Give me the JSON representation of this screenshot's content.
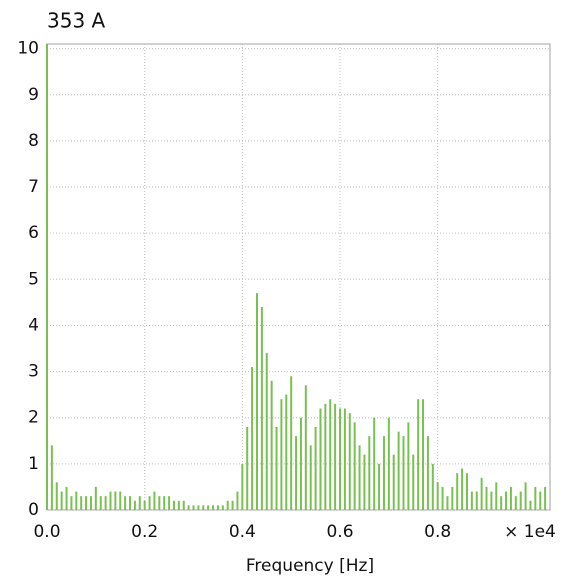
{
  "chart_data": {
    "type": "stem",
    "title": "353 A",
    "x_label": "Frequency [Hz]",
    "x_multiplier": "× 1e4",
    "color": "#78c052",
    "title_color": "#2ea84a",
    "grid": true,
    "xlim": [
      0,
      1.03
    ],
    "ylim": [
      0,
      10.1
    ],
    "xticks": [
      {
        "value": 0,
        "label": "0.0"
      },
      0.2,
      0.4,
      0.6,
      0.8
    ],
    "yticks": [
      0,
      1,
      2,
      3,
      4,
      5,
      6,
      7,
      8,
      9,
      10
    ],
    "x": [
      0,
      0.01,
      0.02,
      0.03,
      0.04,
      0.05,
      0.06,
      0.07,
      0.08,
      0.09,
      0.1,
      0.11,
      0.12,
      0.13,
      0.14,
      0.15,
      0.16,
      0.17,
      0.18,
      0.19,
      0.2,
      0.21,
      0.22,
      0.23,
      0.24,
      0.25,
      0.26,
      0.27,
      0.28,
      0.29,
      0.3,
      0.31,
      0.32,
      0.33,
      0.34,
      0.35,
      0.36,
      0.37,
      0.38,
      0.39,
      0.4,
      0.41,
      0.42,
      0.43,
      0.44,
      0.45,
      0.46,
      0.47,
      0.48,
      0.49,
      0.5,
      0.51,
      0.52,
      0.53,
      0.54,
      0.55,
      0.56,
      0.57,
      0.58,
      0.59,
      0.6,
      0.61,
      0.62,
      0.63,
      0.64,
      0.65,
      0.66,
      0.67,
      0.68,
      0.69,
      0.7,
      0.71,
      0.72,
      0.73,
      0.74,
      0.75,
      0.76,
      0.77,
      0.78,
      0.79,
      0.8,
      0.81,
      0.82,
      0.83,
      0.84,
      0.85,
      0.86,
      0.87,
      0.88,
      0.89,
      0.9,
      0.91,
      0.92,
      0.93,
      0.94,
      0.95,
      0.96,
      0.97,
      0.98,
      0.99,
      1.0,
      1.01,
      1.02
    ],
    "values": [
      10.1,
      1.4,
      0.6,
      0.4,
      0.5,
      0.3,
      0.4,
      0.3,
      0.3,
      0.3,
      0.5,
      0.3,
      0.3,
      0.4,
      0.4,
      0.4,
      0.3,
      0.3,
      0.2,
      0.3,
      0.2,
      0.3,
      0.4,
      0.3,
      0.3,
      0.3,
      0.2,
      0.2,
      0.2,
      0.1,
      0.1,
      0.1,
      0.1,
      0.1,
      0.1,
      0.1,
      0.1,
      0.2,
      0.2,
      0.4,
      1.0,
      1.8,
      3.1,
      4.7,
      4.4,
      3.4,
      2.8,
      1.8,
      2.4,
      2.5,
      2.9,
      1.6,
      2.0,
      2.7,
      1.4,
      1.8,
      2.2,
      2.3,
      2.4,
      2.3,
      2.2,
      2.2,
      2.1,
      1.9,
      1.4,
      1.2,
      1.6,
      2.0,
      1.0,
      1.6,
      2.0,
      1.2,
      1.7,
      1.6,
      1.9,
      1.2,
      2.4,
      2.4,
      1.6,
      1.0,
      0.6,
      0.5,
      0.3,
      0.5,
      0.8,
      0.9,
      0.8,
      0.4,
      0.4,
      0.7,
      0.5,
      0.4,
      0.6,
      0.3,
      0.4,
      0.5,
      0.3,
      0.4,
      0.6,
      0.2,
      0.5,
      0.4,
      0.5
    ]
  }
}
